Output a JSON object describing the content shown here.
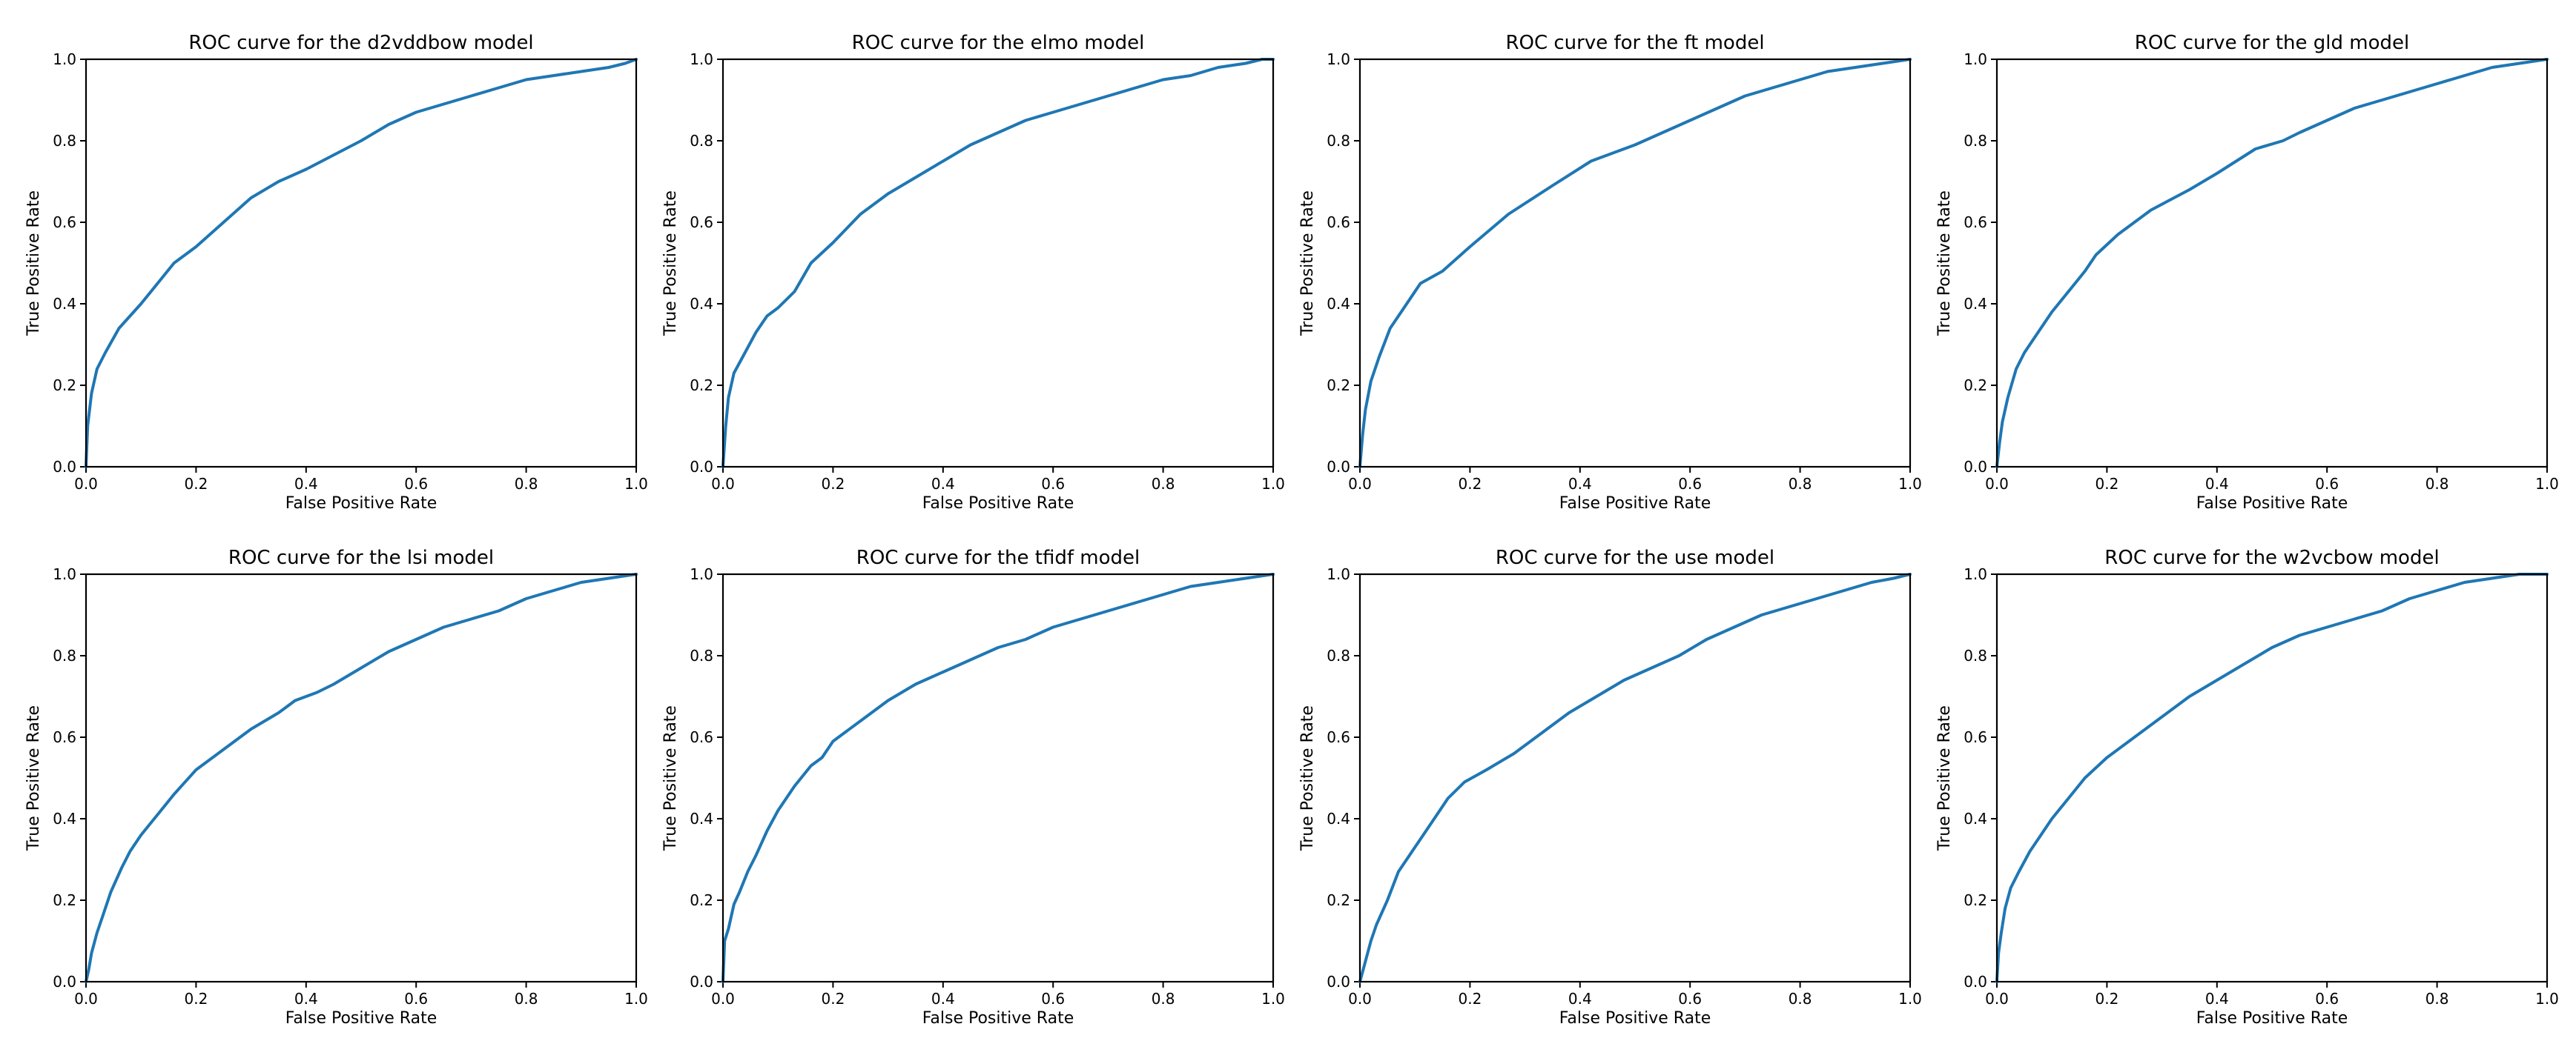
{
  "figure": {
    "line_color": "#1f77b4",
    "background": "#ffffff"
  },
  "chart_data": [
    {
      "type": "line",
      "title": "ROC curve for the d2vddbow model",
      "xlabel": "False Positive Rate",
      "ylabel": "True Positive Rate",
      "xlim": [
        0,
        1
      ],
      "ylim": [
        0,
        1
      ],
      "xticks": [
        "0.0",
        "0.2",
        "0.4",
        "0.6",
        "0.8",
        "1.0"
      ],
      "yticks": [
        "0.0",
        "0.2",
        "0.4",
        "0.6",
        "0.8",
        "1.0"
      ],
      "grid": false,
      "series": [
        {
          "x": [
            0,
            0.003,
            0.01,
            0.02,
            0.035,
            0.06,
            0.1,
            0.13,
            0.16,
            0.2,
            0.25,
            0.3,
            0.35,
            0.4,
            0.5,
            0.55,
            0.6,
            0.65,
            0.7,
            0.75,
            0.8,
            0.85,
            0.9,
            0.95,
            0.98,
            1.0
          ],
          "y": [
            0,
            0.1,
            0.18,
            0.24,
            0.28,
            0.34,
            0.4,
            0.45,
            0.5,
            0.54,
            0.6,
            0.66,
            0.7,
            0.73,
            0.8,
            0.84,
            0.87,
            0.89,
            0.91,
            0.93,
            0.95,
            0.96,
            0.97,
            0.98,
            0.99,
            1.0
          ]
        }
      ]
    },
    {
      "type": "line",
      "title": "ROC curve for the elmo model",
      "xlabel": "False Positive Rate",
      "ylabel": "True Positive Rate",
      "xlim": [
        0,
        1
      ],
      "ylim": [
        0,
        1
      ],
      "xticks": [
        "0.0",
        "0.2",
        "0.4",
        "0.6",
        "0.8",
        "1.0"
      ],
      "yticks": [
        "0.0",
        "0.2",
        "0.4",
        "0.6",
        "0.8",
        "1.0"
      ],
      "grid": false,
      "series": [
        {
          "x": [
            0,
            0.005,
            0.01,
            0.02,
            0.04,
            0.06,
            0.08,
            0.1,
            0.13,
            0.16,
            0.2,
            0.25,
            0.3,
            0.35,
            0.4,
            0.45,
            0.5,
            0.55,
            0.6,
            0.65,
            0.7,
            0.75,
            0.8,
            0.85,
            0.9,
            0.95,
            0.98,
            1.0
          ],
          "y": [
            0,
            0.1,
            0.17,
            0.23,
            0.28,
            0.33,
            0.37,
            0.39,
            0.43,
            0.5,
            0.55,
            0.62,
            0.67,
            0.71,
            0.75,
            0.79,
            0.82,
            0.85,
            0.87,
            0.89,
            0.91,
            0.93,
            0.95,
            0.96,
            0.98,
            0.99,
            1.0,
            1.0
          ]
        }
      ]
    },
    {
      "type": "line",
      "title": "ROC curve for the ft model",
      "xlabel": "False Positive Rate",
      "ylabel": "True Positive Rate",
      "xlim": [
        0,
        1
      ],
      "ylim": [
        0,
        1
      ],
      "xticks": [
        "0.0",
        "0.2",
        "0.4",
        "0.6",
        "0.8",
        "1.0"
      ],
      "yticks": [
        "0.0",
        "0.2",
        "0.4",
        "0.6",
        "0.8",
        "1.0"
      ],
      "grid": false,
      "series": [
        {
          "x": [
            0,
            0.005,
            0.01,
            0.02,
            0.035,
            0.055,
            0.08,
            0.11,
            0.15,
            0.2,
            0.27,
            0.35,
            0.42,
            0.5,
            0.55,
            0.6,
            0.65,
            0.7,
            0.75,
            0.8,
            0.85,
            0.9,
            0.95,
            1.0
          ],
          "y": [
            0,
            0.08,
            0.14,
            0.21,
            0.27,
            0.34,
            0.39,
            0.45,
            0.48,
            0.54,
            0.62,
            0.69,
            0.75,
            0.79,
            0.82,
            0.85,
            0.88,
            0.91,
            0.93,
            0.95,
            0.97,
            0.98,
            0.99,
            1.0
          ]
        }
      ]
    },
    {
      "type": "line",
      "title": "ROC curve for the gld model",
      "xlabel": "False Positive Rate",
      "ylabel": "True Positive Rate",
      "xlim": [
        0,
        1
      ],
      "ylim": [
        0,
        1
      ],
      "xticks": [
        "0.0",
        "0.2",
        "0.4",
        "0.6",
        "0.8",
        "1.0"
      ],
      "yticks": [
        "0.0",
        "0.2",
        "0.4",
        "0.6",
        "0.8",
        "1.0"
      ],
      "grid": false,
      "series": [
        {
          "x": [
            0,
            0.005,
            0.01,
            0.02,
            0.035,
            0.05,
            0.07,
            0.1,
            0.13,
            0.16,
            0.18,
            0.22,
            0.28,
            0.35,
            0.4,
            0.47,
            0.52,
            0.55,
            0.6,
            0.65,
            0.7,
            0.75,
            0.8,
            0.85,
            0.9,
            0.95,
            1.0
          ],
          "y": [
            0,
            0.06,
            0.11,
            0.17,
            0.24,
            0.28,
            0.32,
            0.38,
            0.43,
            0.48,
            0.52,
            0.57,
            0.63,
            0.68,
            0.72,
            0.78,
            0.8,
            0.82,
            0.85,
            0.88,
            0.9,
            0.92,
            0.94,
            0.96,
            0.98,
            0.99,
            1.0
          ]
        }
      ]
    },
    {
      "type": "line",
      "title": "ROC curve for the lsi model",
      "xlabel": "False Positive Rate",
      "ylabel": "True Positive Rate",
      "xlim": [
        0,
        1
      ],
      "ylim": [
        0,
        1
      ],
      "xticks": [
        "0.0",
        "0.2",
        "0.4",
        "0.6",
        "0.8",
        "1.0"
      ],
      "yticks": [
        "0.0",
        "0.2",
        "0.4",
        "0.6",
        "0.8",
        "1.0"
      ],
      "grid": false,
      "series": [
        {
          "x": [
            0,
            0.005,
            0.01,
            0.02,
            0.03,
            0.045,
            0.065,
            0.08,
            0.1,
            0.13,
            0.16,
            0.2,
            0.25,
            0.3,
            0.35,
            0.38,
            0.42,
            0.45,
            0.5,
            0.55,
            0.6,
            0.65,
            0.7,
            0.75,
            0.8,
            0.85,
            0.9,
            0.95,
            1.0
          ],
          "y": [
            0,
            0.03,
            0.07,
            0.12,
            0.16,
            0.22,
            0.28,
            0.32,
            0.36,
            0.41,
            0.46,
            0.52,
            0.57,
            0.62,
            0.66,
            0.69,
            0.71,
            0.73,
            0.77,
            0.81,
            0.84,
            0.87,
            0.89,
            0.91,
            0.94,
            0.96,
            0.98,
            0.99,
            1.0
          ]
        }
      ]
    },
    {
      "type": "line",
      "title": "ROC curve for the tfidf model",
      "xlabel": "False Positive Rate",
      "ylabel": "True Positive Rate",
      "xlim": [
        0,
        1
      ],
      "ylim": [
        0,
        1
      ],
      "xticks": [
        "0.0",
        "0.2",
        "0.4",
        "0.6",
        "0.8",
        "1.0"
      ],
      "yticks": [
        "0.0",
        "0.2",
        "0.4",
        "0.6",
        "0.8",
        "1.0"
      ],
      "grid": false,
      "series": [
        {
          "x": [
            0,
            0.003,
            0.01,
            0.02,
            0.03,
            0.045,
            0.06,
            0.08,
            0.1,
            0.13,
            0.16,
            0.18,
            0.2,
            0.22,
            0.25,
            0.3,
            0.35,
            0.4,
            0.45,
            0.5,
            0.55,
            0.6,
            0.65,
            0.7,
            0.75,
            0.8,
            0.85,
            0.9,
            0.95,
            1.0
          ],
          "y": [
            0,
            0.1,
            0.13,
            0.19,
            0.22,
            0.27,
            0.31,
            0.37,
            0.42,
            0.48,
            0.53,
            0.55,
            0.59,
            0.61,
            0.64,
            0.69,
            0.73,
            0.76,
            0.79,
            0.82,
            0.84,
            0.87,
            0.89,
            0.91,
            0.93,
            0.95,
            0.97,
            0.98,
            0.99,
            1.0
          ]
        }
      ]
    },
    {
      "type": "line",
      "title": "ROC curve for the use model",
      "xlabel": "False Positive Rate",
      "ylabel": "True Positive Rate",
      "xlim": [
        0,
        1
      ],
      "ylim": [
        0,
        1
      ],
      "xticks": [
        "0.0",
        "0.2",
        "0.4",
        "0.6",
        "0.8",
        "1.0"
      ],
      "yticks": [
        "0.0",
        "0.2",
        "0.4",
        "0.6",
        "0.8",
        "1.0"
      ],
      "grid": false,
      "series": [
        {
          "x": [
            0,
            0.01,
            0.02,
            0.03,
            0.05,
            0.07,
            0.1,
            0.13,
            0.16,
            0.19,
            0.23,
            0.28,
            0.33,
            0.38,
            0.43,
            0.48,
            0.53,
            0.58,
            0.63,
            0.68,
            0.73,
            0.78,
            0.83,
            0.88,
            0.93,
            0.97,
            1.0
          ],
          "y": [
            0,
            0.05,
            0.1,
            0.14,
            0.2,
            0.27,
            0.33,
            0.39,
            0.45,
            0.49,
            0.52,
            0.56,
            0.61,
            0.66,
            0.7,
            0.74,
            0.77,
            0.8,
            0.84,
            0.87,
            0.9,
            0.92,
            0.94,
            0.96,
            0.98,
            0.99,
            1.0
          ]
        }
      ]
    },
    {
      "type": "line",
      "title": "ROC curve for the w2vcbow model",
      "xlabel": "False Positive Rate",
      "ylabel": "True Positive Rate",
      "xlim": [
        0,
        1
      ],
      "ylim": [
        0,
        1
      ],
      "xticks": [
        "0.0",
        "0.2",
        "0.4",
        "0.6",
        "0.8",
        "1.0"
      ],
      "yticks": [
        "0.0",
        "0.2",
        "0.4",
        "0.6",
        "0.8",
        "1.0"
      ],
      "grid": false,
      "series": [
        {
          "x": [
            0,
            0.003,
            0.008,
            0.015,
            0.025,
            0.04,
            0.06,
            0.08,
            0.1,
            0.13,
            0.16,
            0.2,
            0.25,
            0.3,
            0.35,
            0.4,
            0.45,
            0.5,
            0.55,
            0.6,
            0.65,
            0.7,
            0.75,
            0.8,
            0.85,
            0.9,
            0.95,
            1.0
          ],
          "y": [
            0,
            0.07,
            0.12,
            0.18,
            0.23,
            0.27,
            0.32,
            0.36,
            0.4,
            0.45,
            0.5,
            0.55,
            0.6,
            0.65,
            0.7,
            0.74,
            0.78,
            0.82,
            0.85,
            0.87,
            0.89,
            0.91,
            0.94,
            0.96,
            0.98,
            0.99,
            1.0,
            1.0
          ]
        }
      ]
    }
  ]
}
